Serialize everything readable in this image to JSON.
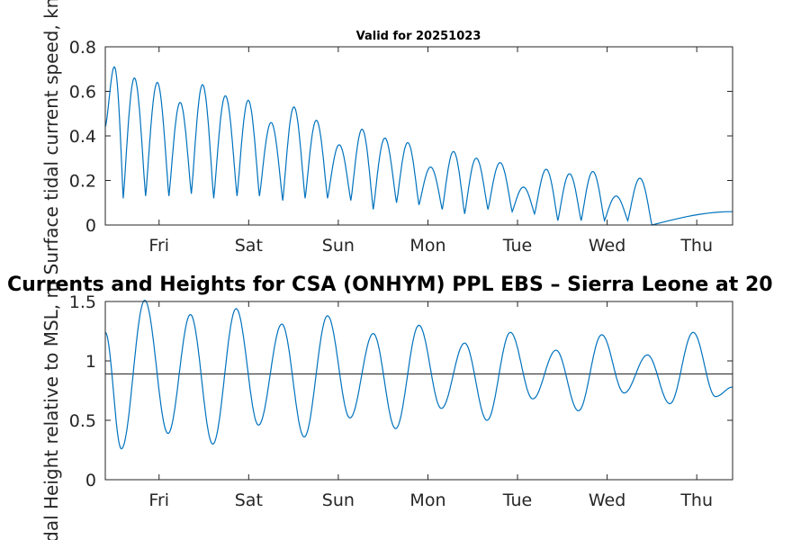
{
  "chart_data": [
    {
      "type": "line",
      "title": "Valid for 20251023",
      "xlabel": "",
      "ylabel": "Surface tidal current speed, kn",
      "xlim": [
        0,
        7
      ],
      "ylim": [
        0,
        0.8
      ],
      "yticks": [
        "0",
        "0.2",
        "0.4",
        "0.6",
        "0.8"
      ],
      "xtick_labels": [
        "Fri",
        "Sat",
        "Sun",
        "Mon",
        "Tue",
        "Wed",
        "Thu"
      ],
      "grid": false,
      "series": [
        {
          "name": "Surface tidal current speed",
          "color": "#0072BD",
          "peaks_x": [
            0.07,
            0.33,
            0.58,
            0.83,
            1.08,
            1.33,
            1.58,
            1.84,
            2.09,
            2.34,
            2.59,
            2.85,
            3.1,
            3.36,
            3.62,
            3.87,
            4.13,
            4.39,
            4.65,
            4.9,
            5.16,
            5.43,
            5.69,
            5.95
          ],
          "peaks_y": [
            0.71,
            0.66,
            0.64,
            0.55,
            0.63,
            0.58,
            0.56,
            0.46,
            0.53,
            0.47,
            0.36,
            0.43,
            0.39,
            0.37,
            0.26,
            0.33,
            0.3,
            0.28,
            0.17,
            0.25,
            0.23,
            0.24,
            0.13,
            0.21
          ],
          "troughs_x": [
            0.0,
            0.2,
            0.45,
            0.71,
            0.96,
            1.21,
            1.47,
            1.72,
            1.98,
            2.23,
            2.48,
            2.74,
            2.99,
            3.25,
            3.5,
            3.76,
            4.01,
            4.27,
            4.54,
            4.79,
            5.05,
            5.31,
            5.57,
            5.83,
            6.1
          ],
          "troughs_y": [
            0.44,
            0.12,
            0.13,
            0.13,
            0.14,
            0.12,
            0.13,
            0.13,
            0.11,
            0.12,
            0.12,
            0.11,
            0.07,
            0.1,
            0.09,
            0.07,
            0.05,
            0.07,
            0.06,
            0.05,
            0.02,
            0.02,
            0.02,
            0.02,
            0.0
          ]
        }
      ]
    },
    {
      "type": "line",
      "title": "Currents and Heights for CSA (ONHYM) PPL EBS  – Sierra Leone at 20",
      "xlabel": "",
      "ylabel": "Tidal Height relative to MSL, m",
      "xlim": [
        0,
        7
      ],
      "ylim": [
        0,
        1.5
      ],
      "yticks": [
        "0",
        "0.5",
        "1",
        "1.5"
      ],
      "xtick_labels": [
        "Fri",
        "Sat",
        "Sun",
        "Mon",
        "Tue",
        "Wed",
        "Thu"
      ],
      "grid": false,
      "reference_line_y": 0.89,
      "series": [
        {
          "name": "Tidal height",
          "color": "#0072BD",
          "extrema_x": [
            0.0,
            0.18,
            0.44,
            0.7,
            0.95,
            1.2,
            1.46,
            1.71,
            1.97,
            2.22,
            2.48,
            2.73,
            2.99,
            3.24,
            3.5,
            3.75,
            4.01,
            4.26,
            4.52,
            4.77,
            5.03,
            5.28,
            5.54,
            5.79,
            6.05,
            6.3,
            6.56,
            6.81,
            7.0
          ],
          "extrema_y": [
            1.24,
            0.26,
            1.51,
            0.39,
            1.39,
            0.3,
            1.44,
            0.46,
            1.31,
            0.36,
            1.38,
            0.52,
            1.23,
            0.43,
            1.3,
            0.6,
            1.15,
            0.5,
            1.24,
            0.68,
            1.09,
            0.58,
            1.22,
            0.73,
            1.05,
            0.64,
            1.24,
            0.7,
            0.78
          ]
        }
      ]
    }
  ]
}
